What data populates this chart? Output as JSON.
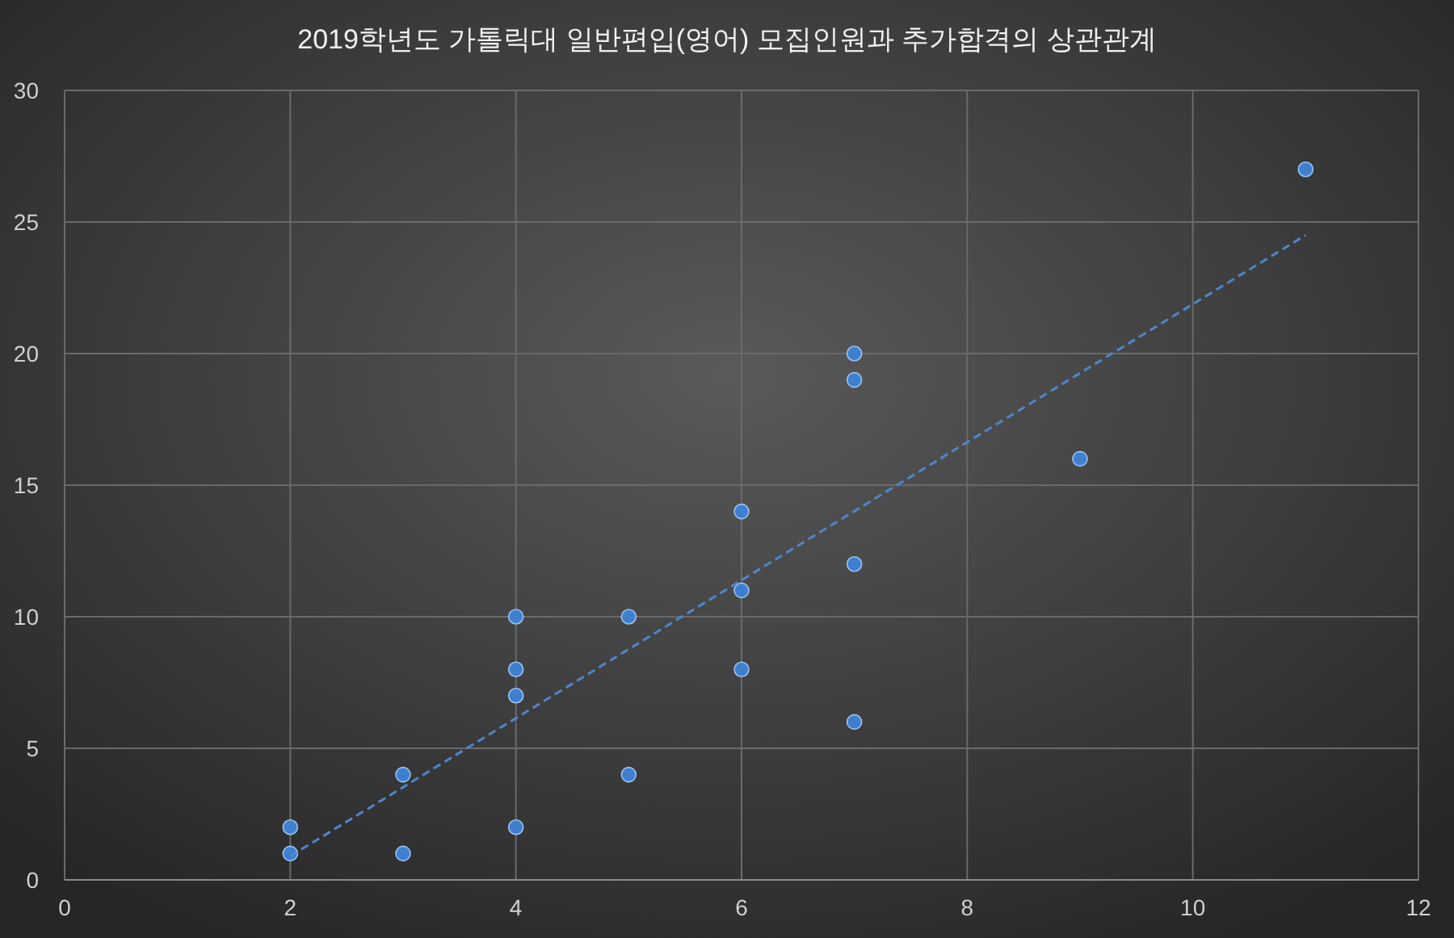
{
  "chart_data": {
    "type": "scatter",
    "title": "2019학년도 가톨릭대 일반편입(영어) 모집인원과 추가합격의 상관관계",
    "xlim": [
      0,
      12
    ],
    "xticks": [
      0,
      2,
      4,
      6,
      8,
      10,
      12
    ],
    "ylim": [
      0,
      30
    ],
    "yticks": [
      0,
      5,
      10,
      15,
      20,
      25,
      30
    ],
    "grid": true,
    "series": [
      {
        "marker": "circle",
        "color": "#3f7fd0",
        "x": [
          2,
          2,
          3,
          3,
          4,
          4,
          4,
          4,
          5,
          5,
          6,
          6,
          6,
          7,
          7,
          7,
          7,
          9,
          11
        ],
        "values": [
          1,
          2,
          1,
          4,
          2,
          7,
          8,
          10,
          4,
          10,
          8,
          11,
          14,
          6,
          12,
          19,
          20,
          16,
          27
        ]
      },
      {
        "type": "line",
        "color": "#4f86cc",
        "line_style": "dashed",
        "x": [
          2,
          11
        ],
        "values": [
          0.9,
          24.5
        ]
      }
    ]
  }
}
